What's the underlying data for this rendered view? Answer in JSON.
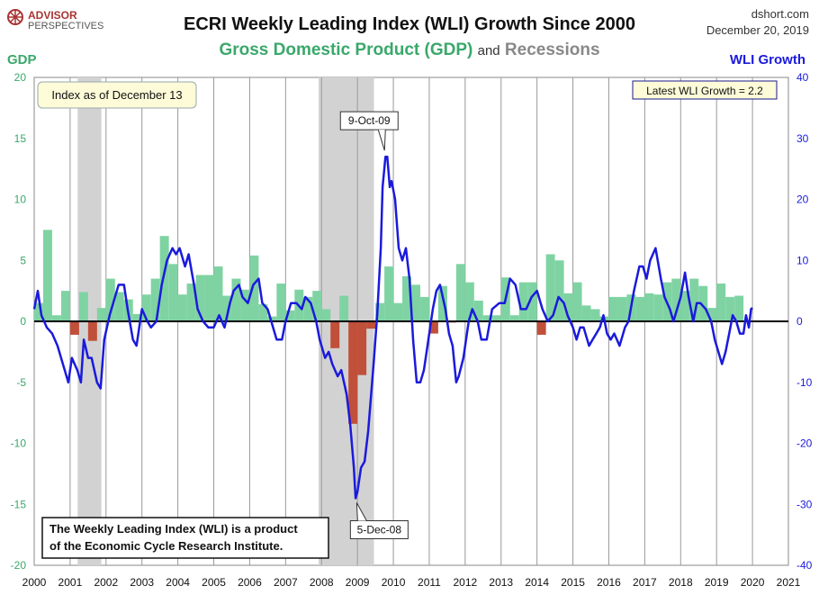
{
  "logo": {
    "line1": "ADVISOR",
    "line2": "PERSPECTIVES"
  },
  "source": "dshort.com",
  "date": "December 20, 2019",
  "title": "ECRI Weekly Leading Index (WLI) Growth Since 2000",
  "subtitle": {
    "gdp": "Gross Domestic Product (GDP)",
    "and": "and",
    "recessions": "Recessions"
  },
  "left_axis_title": "GDP",
  "right_axis_title": "WLI Growth",
  "index_note": "Index as of December 13",
  "latest_box": "Latest WLI Growth = 2.2",
  "footnote": {
    "line1": "The Weekly Leading Index (WLI) is a product",
    "line2": "of the Economic Cycle Research Institute."
  },
  "colors": {
    "gdp_pos": "#7fd3a3",
    "gdp_neg": "#c0503a",
    "wli": "#1a1adc",
    "recession": "#d2d2d2",
    "gdp_title": "#3aa86b",
    "wli_title": "#1a1adc",
    "recession_title": "#888888"
  },
  "chart_data": {
    "type": "bar+line",
    "x_ticks": [
      2000,
      2001,
      2002,
      2003,
      2004,
      2005,
      2006,
      2007,
      2008,
      2009,
      2010,
      2011,
      2012,
      2013,
      2014,
      2015,
      2016,
      2017,
      2018,
      2019,
      2020,
      2021
    ],
    "left_axis": {
      "label": "GDP",
      "ylim": [
        -20,
        20
      ],
      "ticks": [
        -20,
        -15,
        -10,
        -5,
        0,
        5,
        10,
        15,
        20
      ]
    },
    "right_axis": {
      "label": "WLI Growth",
      "ylim": [
        -40,
        40
      ],
      "ticks": [
        -40,
        -30,
        -20,
        -10,
        0,
        10,
        20,
        30,
        40
      ]
    },
    "recessions": [
      [
        2001.21,
        2001.87
      ],
      [
        2007.92,
        2009.46
      ]
    ],
    "gdp_quarterly": [
      1.5,
      7.5,
      0.5,
      2.5,
      -1.1,
      2.4,
      -1.6,
      1.1,
      3.5,
      2.4,
      1.8,
      0.6,
      2.2,
      3.5,
      7.0,
      4.7,
      2.2,
      3.1,
      3.8,
      3.8,
      4.5,
      2.1,
      3.5,
      2.6,
      5.4,
      1.4,
      0.4,
      3.1,
      0.9,
      2.6,
      2.0,
      2.5,
      1.0,
      -2.2,
      2.1,
      -8.4,
      -4.4,
      -0.6,
      1.5,
      4.5,
      1.5,
      3.7,
      3.0,
      2.0,
      -1.0,
      2.9,
      -0.1,
      4.7,
      3.2,
      1.7,
      0.5,
      0.5,
      3.6,
      0.5,
      3.2,
      3.2,
      -1.1,
      5.5,
      5.0,
      2.3,
      3.2,
      1.3,
      1.0,
      0.4,
      2.0,
      2.0,
      2.2,
      2.0,
      2.3,
      2.2,
      3.2,
      3.5,
      2.5,
      3.5,
      2.9,
      1.1,
      3.1,
      2.0,
      2.1
    ],
    "wli_growth": [
      [
        2000.0,
        2
      ],
      [
        2000.1,
        5
      ],
      [
        2000.2,
        1
      ],
      [
        2000.35,
        -1
      ],
      [
        2000.5,
        -2
      ],
      [
        2000.65,
        -4
      ],
      [
        2000.85,
        -8
      ],
      [
        2000.95,
        -10
      ],
      [
        2001.05,
        -6
      ],
      [
        2001.2,
        -8
      ],
      [
        2001.3,
        -10
      ],
      [
        2001.38,
        -3
      ],
      [
        2001.5,
        -6
      ],
      [
        2001.6,
        -6
      ],
      [
        2001.75,
        -10
      ],
      [
        2001.85,
        -11
      ],
      [
        2001.95,
        -3
      ],
      [
        2002.1,
        1
      ],
      [
        2002.2,
        3
      ],
      [
        2002.35,
        6
      ],
      [
        2002.5,
        6
      ],
      [
        2002.6,
        2
      ],
      [
        2002.75,
        -3
      ],
      [
        2002.85,
        -4
      ],
      [
        2003.0,
        2
      ],
      [
        2003.15,
        0
      ],
      [
        2003.25,
        -1
      ],
      [
        2003.4,
        0
      ],
      [
        2003.55,
        6
      ],
      [
        2003.7,
        10
      ],
      [
        2003.85,
        12
      ],
      [
        2003.95,
        11
      ],
      [
        2004.05,
        12
      ],
      [
        2004.2,
        9
      ],
      [
        2004.3,
        11
      ],
      [
        2004.45,
        6
      ],
      [
        2004.55,
        2
      ],
      [
        2004.7,
        0
      ],
      [
        2004.85,
        -1
      ],
      [
        2005.0,
        -1
      ],
      [
        2005.15,
        1
      ],
      [
        2005.3,
        -1
      ],
      [
        2005.45,
        3
      ],
      [
        2005.55,
        5
      ],
      [
        2005.7,
        6
      ],
      [
        2005.8,
        4
      ],
      [
        2005.95,
        3
      ],
      [
        2006.1,
        6
      ],
      [
        2006.25,
        7
      ],
      [
        2006.35,
        3
      ],
      [
        2006.5,
        2
      ],
      [
        2006.6,
        0
      ],
      [
        2006.75,
        -3
      ],
      [
        2006.9,
        -3
      ],
      [
        2007.0,
        0
      ],
      [
        2007.15,
        3
      ],
      [
        2007.3,
        3
      ],
      [
        2007.45,
        2
      ],
      [
        2007.55,
        4
      ],
      [
        2007.7,
        3
      ],
      [
        2007.85,
        0
      ],
      [
        2007.95,
        -3
      ],
      [
        2008.1,
        -6
      ],
      [
        2008.2,
        -5
      ],
      [
        2008.3,
        -7
      ],
      [
        2008.45,
        -9
      ],
      [
        2008.55,
        -8
      ],
      [
        2008.7,
        -12
      ],
      [
        2008.8,
        -17
      ],
      [
        2008.9,
        -24
      ],
      [
        2008.95,
        -29
      ],
      [
        2009.0,
        -28
      ],
      [
        2009.1,
        -24
      ],
      [
        2009.2,
        -23
      ],
      [
        2009.3,
        -18
      ],
      [
        2009.45,
        -7
      ],
      [
        2009.55,
        1
      ],
      [
        2009.65,
        12
      ],
      [
        2009.7,
        22
      ],
      [
        2009.78,
        27
      ],
      [
        2009.83,
        27
      ],
      [
        2009.9,
        22
      ],
      [
        2009.95,
        23
      ],
      [
        2010.05,
        20
      ],
      [
        2010.15,
        12
      ],
      [
        2010.25,
        10
      ],
      [
        2010.35,
        12
      ],
      [
        2010.45,
        7
      ],
      [
        2010.55,
        -3
      ],
      [
        2010.65,
        -10
      ],
      [
        2010.75,
        -10
      ],
      [
        2010.85,
        -8
      ],
      [
        2010.95,
        -4
      ],
      [
        2011.1,
        2
      ],
      [
        2011.2,
        5
      ],
      [
        2011.3,
        6
      ],
      [
        2011.45,
        2
      ],
      [
        2011.55,
        -2
      ],
      [
        2011.65,
        -4
      ],
      [
        2011.75,
        -10
      ],
      [
        2011.82,
        -9
      ],
      [
        2011.95,
        -6
      ],
      [
        2012.1,
        0
      ],
      [
        2012.2,
        2
      ],
      [
        2012.35,
        0
      ],
      [
        2012.45,
        -3
      ],
      [
        2012.6,
        -3
      ],
      [
        2012.75,
        2
      ],
      [
        2012.95,
        3
      ],
      [
        2013.1,
        3
      ],
      [
        2013.25,
        7
      ],
      [
        2013.4,
        6
      ],
      [
        2013.55,
        2
      ],
      [
        2013.7,
        2
      ],
      [
        2013.85,
        4
      ],
      [
        2014.0,
        5
      ],
      [
        2014.15,
        2
      ],
      [
        2014.3,
        0
      ],
      [
        2014.45,
        1
      ],
      [
        2014.6,
        4
      ],
      [
        2014.75,
        3
      ],
      [
        2014.85,
        1
      ],
      [
        2015.0,
        -1
      ],
      [
        2015.1,
        -3
      ],
      [
        2015.2,
        -1
      ],
      [
        2015.3,
        -1
      ],
      [
        2015.45,
        -4
      ],
      [
        2015.55,
        -3
      ],
      [
        2015.65,
        -2
      ],
      [
        2015.75,
        -1
      ],
      [
        2015.85,
        1
      ],
      [
        2015.95,
        -2
      ],
      [
        2016.05,
        -3
      ],
      [
        2016.15,
        -2
      ],
      [
        2016.3,
        -4
      ],
      [
        2016.45,
        -1
      ],
      [
        2016.55,
        0
      ],
      [
        2016.7,
        5
      ],
      [
        2016.85,
        9
      ],
      [
        2016.95,
        9
      ],
      [
        2017.05,
        7
      ],
      [
        2017.15,
        10
      ],
      [
        2017.3,
        12
      ],
      [
        2017.45,
        7
      ],
      [
        2017.55,
        4
      ],
      [
        2017.7,
        2
      ],
      [
        2017.8,
        0
      ],
      [
        2017.9,
        2
      ],
      [
        2018.0,
        4
      ],
      [
        2018.12,
        8
      ],
      [
        2018.22,
        4
      ],
      [
        2018.35,
        0
      ],
      [
        2018.45,
        3
      ],
      [
        2018.55,
        3
      ],
      [
        2018.7,
        2
      ],
      [
        2018.85,
        0
      ],
      [
        2018.95,
        -3
      ],
      [
        2019.05,
        -5
      ],
      [
        2019.15,
        -7
      ],
      [
        2019.25,
        -5
      ],
      [
        2019.35,
        -2
      ],
      [
        2019.45,
        1
      ],
      [
        2019.55,
        0
      ],
      [
        2019.65,
        -2
      ],
      [
        2019.75,
        -2
      ],
      [
        2019.82,
        1
      ],
      [
        2019.9,
        -1
      ],
      [
        2019.96,
        2
      ],
      [
        2020.0,
        2.2
      ]
    ],
    "annotations": [
      {
        "label": "9-Oct-09",
        "x": 2009.78,
        "y": 27
      },
      {
        "label": "5-Dec-08",
        "x": 2008.93,
        "y": -29
      }
    ]
  }
}
